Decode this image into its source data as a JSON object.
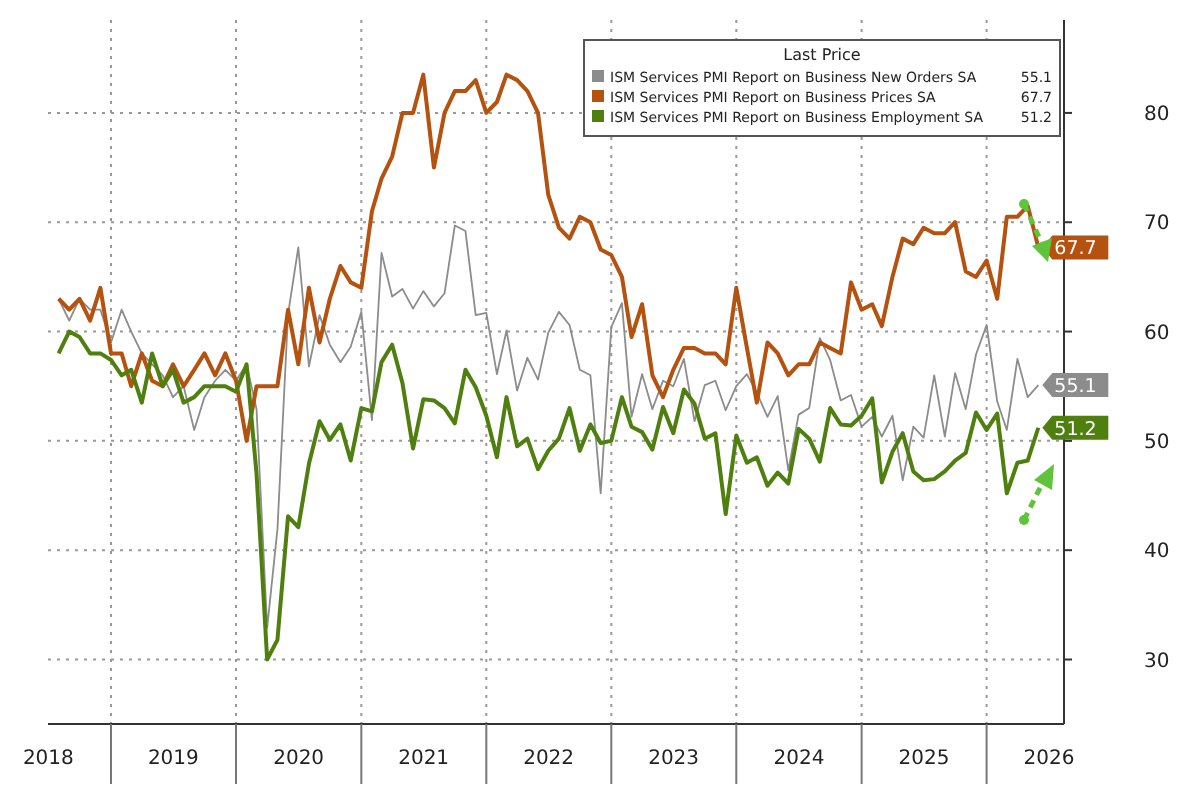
{
  "chart_data": {
    "type": "line",
    "legend_title": "Last Price",
    "legend": "top right",
    "grid": true,
    "x": [
      "2018-08",
      "2018-09",
      "2018-10",
      "2018-11",
      "2018-12",
      "2019-01",
      "2019-02",
      "2019-03",
      "2019-04",
      "2019-05",
      "2019-06",
      "2019-07",
      "2019-08",
      "2019-09",
      "2019-10",
      "2019-11",
      "2019-12",
      "2020-01",
      "2020-02",
      "2020-03",
      "2020-04",
      "2020-05",
      "2020-06",
      "2020-07",
      "2020-08",
      "2020-09",
      "2020-10",
      "2020-11",
      "2020-12",
      "2021-01",
      "2021-02",
      "2021-03",
      "2021-04",
      "2021-05",
      "2021-06",
      "2021-07",
      "2021-08",
      "2021-09",
      "2021-10",
      "2021-11",
      "2021-12",
      "2022-01",
      "2022-02",
      "2022-03",
      "2022-04",
      "2022-05",
      "2022-06",
      "2022-07",
      "2022-08",
      "2022-09",
      "2022-10",
      "2022-11",
      "2022-12",
      "2023-01",
      "2023-02",
      "2023-03",
      "2023-04",
      "2023-05",
      "2023-06",
      "2023-07",
      "2023-08",
      "2023-09",
      "2023-10",
      "2023-11",
      "2023-12",
      "2024-01",
      "2024-02",
      "2024-03",
      "2024-04",
      "2024-05",
      "2024-06",
      "2024-07",
      "2024-08",
      "2024-09",
      "2024-10",
      "2024-11",
      "2024-12",
      "2025-01",
      "2025-02",
      "2025-03",
      "2025-04",
      "2025-05",
      "2025-06",
      "2025-07",
      "2025-08",
      "2025-09",
      "2025-10",
      "2025-11",
      "2025-12",
      "2026-01",
      "2026-02",
      "2026-03",
      "2026-04",
      "2026-05",
      "2026-06"
    ],
    "series": [
      {
        "name": "ISM Services PMI Report on Business New Orders SA",
        "color": "#8c8c8c",
        "values": [
          63,
          61,
          63,
          62,
          62,
          59,
          62,
          60,
          58,
          57,
          56,
          54,
          55,
          51,
          54,
          55.5,
          56.5,
          55.5,
          57,
          52.9,
          32.9,
          41.9,
          61.6,
          67.7,
          56.8,
          61.5,
          58.8,
          57.2,
          58.6,
          61.8,
          51.9,
          67.2,
          63.2,
          63.9,
          62.1,
          63.7,
          62.3,
          63.5,
          69.7,
          69.2,
          61.5,
          61.7,
          56.1,
          60.1,
          54.6,
          57.6,
          55.6,
          59.9,
          61.8,
          60.6,
          56.5,
          56,
          45.2,
          60.4,
          62.6,
          52.2,
          56.1,
          52.9,
          55.5,
          55,
          57.5,
          51.8,
          55.1,
          55.5,
          52.8,
          55,
          56.1,
          54.4,
          52.2,
          54.1,
          47.3,
          52.4,
          53,
          59.4,
          57.4,
          53.7,
          54.2,
          51.3,
          52.2,
          50.4,
          52.3,
          46.4,
          51.3,
          50.3,
          56,
          50.4,
          56.2,
          52.9,
          57.9,
          60.6,
          53.6,
          51,
          57.5,
          54,
          55.1
        ],
        "value_labels": [
          null,
          null,
          null,
          null,
          null,
          null,
          null,
          null,
          null,
          null,
          null,
          null,
          null,
          null,
          null,
          null,
          null,
          null,
          null,
          null,
          null,
          null,
          null,
          null,
          null,
          null,
          null,
          null,
          null,
          null,
          null,
          null,
          null,
          null,
          null,
          null,
          null,
          null,
          null,
          null,
          null,
          null,
          null,
          null,
          null,
          null,
          null,
          null,
          null,
          null,
          null,
          null,
          null,
          null,
          null,
          null,
          null,
          null,
          null,
          null,
          null,
          null,
          null,
          null,
          null,
          null,
          null,
          null,
          null,
          null,
          null,
          null,
          null,
          null,
          null,
          null,
          null,
          null,
          null,
          null,
          null,
          null,
          null,
          null,
          null,
          null,
          null,
          null,
          null,
          null,
          null,
          null,
          null,
          null,
          "55.1"
        ]
      },
      {
        "name": "ISM Services PMI Report on Business Prices SA",
        "color": "#b5520f",
        "values": [
          63,
          62,
          63,
          61,
          64,
          58,
          58,
          55,
          58,
          55.5,
          55,
          57,
          55,
          56.5,
          58,
          56,
          58,
          55.5,
          50,
          55,
          55,
          55,
          62,
          57,
          64,
          59,
          63,
          66,
          64.5,
          64,
          71,
          74,
          76,
          80,
          80,
          83.5,
          75,
          80,
          82,
          82,
          83,
          80,
          81,
          83.5,
          83,
          82,
          80,
          72.5,
          69.5,
          68.5,
          70.5,
          70,
          67.5,
          67,
          65,
          59.5,
          62.5,
          56,
          54,
          56.5,
          58.5,
          58.5,
          58,
          58,
          57,
          64,
          58.5,
          53.5,
          59,
          58,
          56,
          57,
          57,
          59,
          58.5,
          58,
          64.5,
          62,
          62.5,
          60.5,
          65,
          68.5,
          68,
          69.5,
          69,
          69,
          70,
          65.5,
          65,
          66.5,
          63,
          70.5,
          70.5,
          71.5,
          67.7
        ],
        "value_labels": [
          null,
          null,
          null,
          null,
          null,
          null,
          null,
          null,
          null,
          null,
          null,
          null,
          null,
          null,
          null,
          null,
          null,
          null,
          null,
          null,
          null,
          null,
          null,
          null,
          null,
          null,
          null,
          null,
          null,
          null,
          null,
          null,
          null,
          null,
          null,
          null,
          null,
          null,
          null,
          null,
          null,
          null,
          null,
          null,
          null,
          null,
          null,
          null,
          null,
          null,
          null,
          null,
          null,
          null,
          null,
          null,
          null,
          null,
          null,
          null,
          null,
          null,
          null,
          null,
          null,
          null,
          null,
          null,
          null,
          null,
          null,
          null,
          null,
          null,
          null,
          null,
          null,
          null,
          null,
          null,
          null,
          null,
          null,
          null,
          null,
          null,
          null,
          null,
          null,
          null,
          null,
          null,
          null,
          null,
          "67.7"
        ]
      },
      {
        "name": "ISM Services PMI Report on Business Employment SA",
        "color": "#4f7f0e",
        "values": [
          58,
          60,
          59.5,
          58,
          58,
          57.4,
          56,
          56.5,
          53.5,
          58,
          55,
          56.5,
          53.5,
          54,
          55,
          55,
          55,
          54.5,
          57,
          47,
          30,
          31.8,
          43.1,
          42.1,
          47.9,
          51.8,
          50.1,
          51.5,
          48.2,
          53,
          52.7,
          57.2,
          58.8,
          55.3,
          49.3,
          53.8,
          53.7,
          53,
          51.6,
          56.5,
          54.9,
          52.3,
          48.5,
          54,
          49.5,
          50.2,
          47.4,
          49.1,
          50.2,
          53,
          49.1,
          51.5,
          49.8,
          50,
          54,
          51.3,
          50.8,
          49.2,
          53.1,
          50.7,
          54.7,
          53.4,
          50.2,
          50.7,
          43.3,
          50.5,
          48,
          48.5,
          45.9,
          47.1,
          46.1,
          51.1,
          50.2,
          48.1,
          53,
          51.5,
          51.4,
          52.3,
          53.9,
          46.2,
          49,
          50.7,
          47.2,
          46.4,
          46.5,
          47.2,
          48.2,
          48.9,
          52.6,
          51,
          52.5,
          45.2,
          48,
          48.2,
          51.2
        ],
        "value_labels": [
          null,
          null,
          null,
          null,
          null,
          null,
          null,
          null,
          null,
          null,
          null,
          null,
          null,
          null,
          null,
          null,
          null,
          null,
          null,
          null,
          null,
          null,
          null,
          null,
          null,
          null,
          null,
          null,
          null,
          null,
          null,
          null,
          null,
          null,
          null,
          null,
          null,
          null,
          null,
          null,
          null,
          null,
          null,
          null,
          null,
          null,
          null,
          null,
          null,
          null,
          null,
          null,
          null,
          null,
          null,
          null,
          null,
          null,
          null,
          null,
          null,
          null,
          null,
          null,
          null,
          null,
          null,
          null,
          null,
          null,
          null,
          null,
          null,
          null,
          null,
          null,
          null,
          null,
          null,
          null,
          null,
          null,
          null,
          null,
          null,
          null,
          null,
          null,
          null,
          null,
          null,
          null,
          null,
          null,
          "51.2"
        ]
      }
    ],
    "xlim": [
      "2018-07-01",
      "2026-08-15"
    ],
    "xticks": [
      {
        "value": "2018-07-02",
        "label": "2018"
      },
      {
        "value": "2019-01-01",
        "label": null
      },
      {
        "value": "2019-07-02",
        "label": "2019"
      },
      {
        "value": "2020-01-01",
        "label": null
      },
      {
        "value": "2020-07-02",
        "label": "2020"
      },
      {
        "value": "2021-01-01",
        "label": null
      },
      {
        "value": "2021-07-02",
        "label": "2021"
      },
      {
        "value": "2022-01-01",
        "label": null
      },
      {
        "value": "2022-07-02",
        "label": "2022"
      },
      {
        "value": "2023-01-01",
        "label": null
      },
      {
        "value": "2023-07-02",
        "label": "2023"
      },
      {
        "value": "2024-01-01",
        "label": null
      },
      {
        "value": "2024-07-02",
        "label": "2024"
      },
      {
        "value": "2025-01-01",
        "label": null
      },
      {
        "value": "2025-07-02",
        "label": "2025"
      },
      {
        "value": "2026-01-01",
        "label": null
      },
      {
        "value": "2026-07-02",
        "label": "2026"
      }
    ],
    "ylim": [
      24.1,
      88.5
    ],
    "yticks": [
      30,
      40,
      50,
      60,
      70,
      80
    ]
  }
}
